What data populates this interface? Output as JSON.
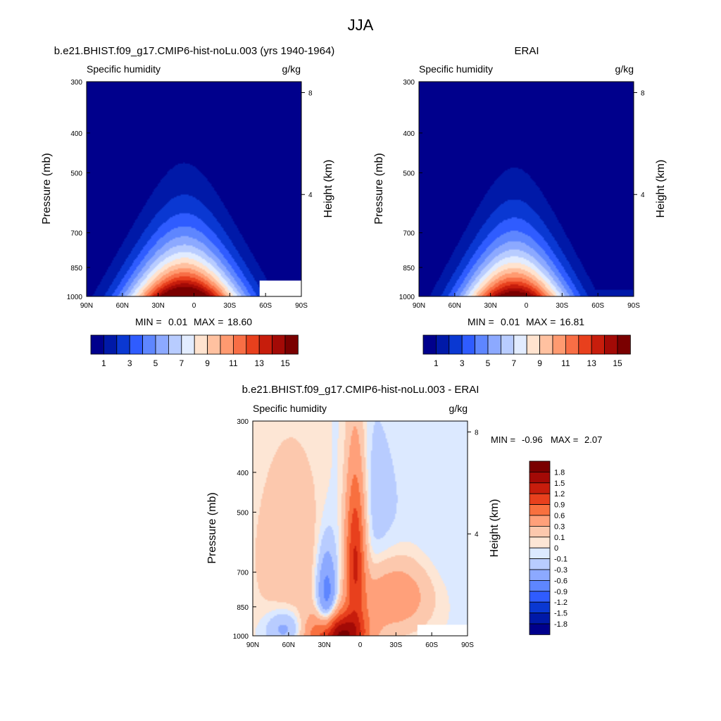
{
  "figure_title": "JJA",
  "chart_data": [
    {
      "type": "heatmap",
      "panel": "model",
      "title": "b.e21.BHIST.f09_g17.CMIP6-hist-noLu.003 (yrs 1940-1964)",
      "left_string": "Specific humidity",
      "right_string": "g/kg",
      "ylabel": "Pressure (mb)",
      "y2label": "Height (km)",
      "x_ticks": [
        "90N",
        "60N",
        "30N",
        "0",
        "30S",
        "60S",
        "90S"
      ],
      "x_tick_lat": [
        90,
        60,
        30,
        0,
        -30,
        -60,
        -90
      ],
      "y_ticks": [
        "300",
        "400",
        "500",
        "700",
        "850",
        "1000"
      ],
      "y_tick_values": [
        300,
        400,
        500,
        700,
        850,
        1000
      ],
      "y2_ticks": [
        "8",
        "4"
      ],
      "y2_tick_values": [
        8,
        4
      ],
      "stats": {
        "min_label": "MIN =",
        "min": "0.01",
        "max_label": "MAX =",
        "max": "18.60"
      },
      "max_value": 18.6,
      "peak_lat": 8,
      "peak_width": 32,
      "peak_pressure_top": 330,
      "missing_topography": {
        "lat_range": [
          -55,
          -90
        ],
        "pressure_top": 915
      }
    },
    {
      "type": "heatmap",
      "panel": "obs",
      "title": "ERAI",
      "left_string": "Specific humidity",
      "right_string": "g/kg",
      "ylabel": "Pressure (mb)",
      "y2label": "Height (km)",
      "x_ticks": [
        "90N",
        "60N",
        "30N",
        "0",
        "30S",
        "60S",
        "90S"
      ],
      "x_tick_lat": [
        90,
        60,
        30,
        0,
        -30,
        -60,
        -90
      ],
      "y_ticks": [
        "300",
        "400",
        "500",
        "700",
        "850",
        "1000"
      ],
      "y_tick_values": [
        300,
        400,
        500,
        700,
        850,
        1000
      ],
      "y2_ticks": [
        "8",
        "4"
      ],
      "y2_tick_values": [
        8,
        4
      ],
      "stats": {
        "min_label": "MIN =",
        "min": "0.01",
        "max_label": "MAX =",
        "max": "16.81"
      },
      "max_value": 16.81,
      "peak_lat": 10,
      "peak_width": 30,
      "peak_pressure_top": 335
    },
    {
      "type": "heatmap",
      "panel": "difference",
      "title": "b.e21.BHIST.f09_g17.CMIP6-hist-noLu.003 - ERAI",
      "left_string": "Specific humidity",
      "right_string": "g/kg",
      "ylabel": "Pressure (mb)",
      "y2label": "Height (km)",
      "x_ticks": [
        "90N",
        "60N",
        "30N",
        "0",
        "30S",
        "60S",
        "90S"
      ],
      "x_tick_lat": [
        90,
        60,
        30,
        0,
        -30,
        -60,
        -90
      ],
      "y_ticks": [
        "300",
        "400",
        "500",
        "700",
        "850",
        "1000"
      ],
      "y_tick_values": [
        300,
        400,
        500,
        700,
        850,
        1000
      ],
      "y2_ticks": [
        "8",
        "4"
      ],
      "y2_tick_values": [
        8,
        4
      ],
      "stats": {
        "min_label": "MIN =",
        "min": "-0.96",
        "max_label": "MAX =",
        "max": "2.07"
      },
      "features": [
        {
          "lat": 18,
          "p": 1000,
          "amp": 1.9,
          "wlat": 16,
          "wp": 90
        },
        {
          "lat": 4,
          "p": 620,
          "amp": 1.3,
          "wlat": 6,
          "wp": 200
        },
        {
          "lat": -28,
          "p": 800,
          "amp": 0.6,
          "wlat": 22,
          "wp": 110
        },
        {
          "lat": 58,
          "p": 640,
          "amp": 0.25,
          "wlat": 22,
          "wp": 230
        },
        {
          "lat": 28,
          "p": 820,
          "amp": -0.9,
          "wlat": 6,
          "wp": 150
        },
        {
          "lat": 63,
          "p": 960,
          "amp": -0.45,
          "wlat": 11,
          "wp": 70
        },
        {
          "lat": -8,
          "p": 520,
          "amp": -0.2,
          "wlat": 18,
          "wp": 200
        },
        {
          "lat": -68,
          "p": 600,
          "amp": -0.1,
          "wlat": 22,
          "wp": 240
        }
      ],
      "missing_topography": {
        "lat_range": [
          -48,
          -90
        ],
        "pressure_top": 940
      }
    }
  ],
  "colorbars": {
    "absolute": {
      "levels": [
        1,
        2,
        3,
        4,
        5,
        6,
        7,
        8,
        9,
        10,
        11,
        12,
        13,
        14,
        15
      ],
      "labels": [
        "1",
        "3",
        "5",
        "7",
        "9",
        "11",
        "13",
        "15"
      ],
      "colors": [
        "#00008c",
        "#0019a8",
        "#0a38d2",
        "#2f5cff",
        "#5e86ff",
        "#8ca9ff",
        "#b8ccff",
        "#e2ecff",
        "#ffe3cf",
        "#ffc1a0",
        "#ff9a70",
        "#f86e45",
        "#e8401d",
        "#c71d0c",
        "#a30a06",
        "#7a0000"
      ]
    },
    "difference": {
      "labels": [
        "1.8",
        "1.5",
        "1.2",
        "0.9",
        "0.6",
        "0.3",
        "0.1",
        "0",
        "-0.1",
        "-0.3",
        "-0.6",
        "-0.9",
        "-1.2",
        "-1.5",
        "-1.8"
      ],
      "levels": [
        -1.8,
        -1.5,
        -1.2,
        -0.9,
        -0.6,
        -0.3,
        -0.1,
        0,
        0.1,
        0.3,
        0.6,
        0.9,
        1.2,
        1.5,
        1.8
      ],
      "colors": [
        "#00008c",
        "#0019a8",
        "#0a38d2",
        "#2f5cff",
        "#5e86ff",
        "#8ca9ff",
        "#b8ccff",
        "#dce9ff",
        "#fde6d5",
        "#fcc8ad",
        "#ffa07a",
        "#f8703f",
        "#e8401d",
        "#c71d0c",
        "#a30a06",
        "#7a0000"
      ]
    }
  }
}
